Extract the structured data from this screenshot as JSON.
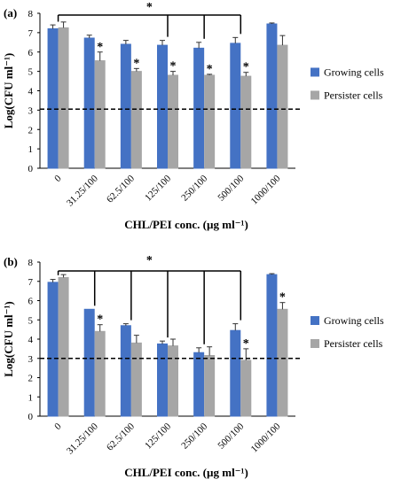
{
  "colors": {
    "growing": "#4472C4",
    "persister": "#A6A6A6",
    "axis": "#000000"
  },
  "chart_data": [
    {
      "type": "bar",
      "panel_label": "(a)",
      "categories": [
        "0",
        "31.25/100",
        "62.5/100",
        "125/100",
        "250/100",
        "500/100",
        "1000/100"
      ],
      "series": [
        {
          "name": "Growing cells",
          "values": [
            7.2,
            6.72,
            6.4,
            6.35,
            6.2,
            6.45,
            7.45
          ],
          "errors": [
            0.2,
            0.15,
            0.2,
            0.25,
            0.3,
            0.3,
            0.05
          ]
        },
        {
          "name": "Persister cells",
          "values": [
            7.25,
            5.55,
            5.0,
            4.8,
            4.8,
            4.75,
            6.35
          ],
          "errors": [
            0.3,
            0.45,
            0.15,
            0.2,
            0.05,
            0.2,
            0.5
          ]
        }
      ],
      "significance_markers": [
        {
          "series": "Persister cells",
          "category": "31.25/100",
          "label": "*"
        },
        {
          "series": "Persister cells",
          "category": "62.5/100",
          "label": "*"
        },
        {
          "series": "Persister cells",
          "category": "125/100",
          "label": "*"
        },
        {
          "series": "Persister cells",
          "category": "250/100",
          "label": "*"
        },
        {
          "series": "Persister cells",
          "category": "500/100",
          "label": "*"
        }
      ],
      "bracket": {
        "from": "0",
        "to": [
          "125/100",
          "250/100",
          "500/100"
        ],
        "label": "*"
      },
      "reference_line": {
        "y": 3.05,
        "style": "dashed"
      },
      "xlabel": "CHL/PEI conc. (µg ml⁻¹)",
      "ylabel": "Log(CFU ml⁻¹)",
      "ylim": [
        0,
        8
      ],
      "yticks": [
        0,
        1,
        2,
        3,
        4,
        5,
        6,
        7,
        8
      ],
      "grid": false,
      "legend": "right"
    },
    {
      "type": "bar",
      "panel_label": "(b)",
      "categories": [
        "0",
        "31.25/100",
        "62.5/100",
        "125/100",
        "250/100",
        "500/100",
        "1000/100"
      ],
      "series": [
        {
          "name": "Growing cells",
          "values": [
            6.95,
            5.55,
            4.7,
            3.75,
            3.3,
            4.45,
            7.35
          ],
          "errors": [
            0.15,
            0.0,
            0.1,
            0.15,
            0.25,
            0.35,
            0.05
          ]
        },
        {
          "name": "Persister cells",
          "values": [
            7.2,
            4.4,
            3.8,
            3.65,
            3.15,
            2.9,
            5.55
          ],
          "errors": [
            0.15,
            0.35,
            0.4,
            0.35,
            0.45,
            0.6,
            0.35
          ]
        }
      ],
      "significance_markers": [
        {
          "series": "Persister cells",
          "category": "31.25/100",
          "label": "*"
        },
        {
          "series": "Persister cells",
          "category": "500/100",
          "label": "*"
        },
        {
          "series": "Persister cells",
          "category": "1000/100",
          "label": "*"
        }
      ],
      "bracket": {
        "from": "0",
        "to": [
          "31.25/100",
          "62.5/100",
          "125/100",
          "250/100",
          "500/100"
        ],
        "label": "*"
      },
      "reference_line": {
        "y": 3.0,
        "style": "dashed"
      },
      "xlabel": "CHL/PEI conc. (µg ml⁻¹)",
      "ylabel": "Log(CFU ml⁻¹)",
      "ylim": [
        0,
        8
      ],
      "yticks": [
        0,
        1,
        2,
        3,
        4,
        5,
        6,
        7,
        8
      ],
      "grid": false,
      "legend": "right"
    }
  ]
}
